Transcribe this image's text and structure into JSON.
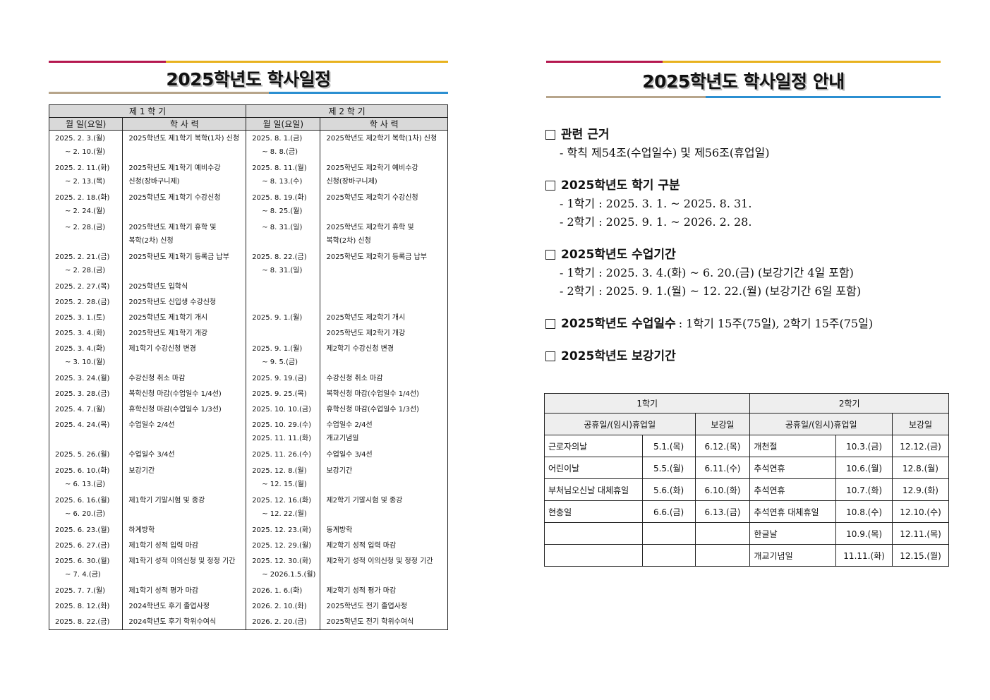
{
  "left": {
    "title": "2025학년도 학사일정",
    "table": {
      "semesters": [
        "제 1 학 기",
        "제 2 학 기"
      ],
      "columns": [
        "월 일(요일)",
        "학 사 력",
        "월 일(요일)",
        "학 사 력"
      ],
      "rows": [
        [
          [
            "2025. 2. 3.(월)",
            "~ 2. 10.(월)"
          ],
          [
            "2025학년도 제1학기 복학(1차) 신청"
          ],
          [
            "2025. 8. 1.(금)",
            "~ 8. 8.(금)"
          ],
          [
            "2025학년도 제2학기 복학(1차) 신청"
          ]
        ],
        [
          [
            "2025. 2. 11.(화)",
            "~ 2. 13.(목)"
          ],
          [
            "2025학년도 제1학기 예비수강",
            "신청(장바구니제)"
          ],
          [
            "2025. 8. 11.(월)",
            "~ 8. 13.(수)"
          ],
          [
            "2025학년도 제2학기 예비수강",
            "신청(장바구니제)"
          ]
        ],
        [
          [
            "2025. 2. 18.(화)",
            "~ 2. 24.(월)"
          ],
          [
            "2025학년도 제1학기 수강신청"
          ],
          [
            "2025. 8. 19.(화)",
            "~ 8. 25.(월)"
          ],
          [
            "2025학년도 제2학기 수강신청"
          ]
        ],
        [
          [
            "~ 2. 28.(금)"
          ],
          [
            "2025학년도 제1학기 휴학 및",
            "복학(2차) 신청"
          ],
          [
            "~ 8. 31.(일)"
          ],
          [
            "2025학년도 제2학기 휴학 및",
            "복학(2차) 신청"
          ]
        ],
        [
          [
            "2025. 2. 21.(금)",
            "~ 2. 28.(금)"
          ],
          [
            "2025학년도 제1학기 등록금 납부"
          ],
          [
            "2025. 8. 22.(금)",
            "~ 8. 31.(일)"
          ],
          [
            "2025학년도 제2학기 등록금 납부"
          ]
        ],
        [
          [
            "2025. 2. 27.(목)"
          ],
          [
            "2025학년도 입학식"
          ],
          [],
          []
        ],
        [
          [
            "2025. 2. 28.(금)"
          ],
          [
            "2025학년도 신입생 수강신청"
          ],
          [],
          []
        ],
        [
          [
            "2025. 3. 1.(토)"
          ],
          [
            "2025학년도 제1학기 개시"
          ],
          [
            "2025. 9. 1.(월)"
          ],
          [
            "2025학년도 제2학기 개시"
          ]
        ],
        [
          [
            "2025. 3. 4.(화)"
          ],
          [
            "2025학년도 제1학기 개강"
          ],
          [],
          [
            "2025학년도 제2학기 개강"
          ]
        ],
        [
          [
            "2025. 3. 4.(화)",
            "~ 3. 10.(월)"
          ],
          [
            "제1학기 수강신청 변경"
          ],
          [
            "2025. 9. 1.(월)",
            "~ 9. 5.(금)"
          ],
          [
            "제2학기 수강신청 변경"
          ]
        ],
        [
          [
            "2025. 3. 24.(월)"
          ],
          [
            "수강신청 취소 마감"
          ],
          [
            "2025. 9. 19.(금)"
          ],
          [
            "수강신청 취소 마감"
          ]
        ],
        [
          [
            "2025. 3. 28.(금)"
          ],
          [
            "복학신청 마감(수업일수 1/4선)"
          ],
          [
            "2025. 9. 25.(목)"
          ],
          [
            "복학신청 마감(수업일수 1/4선)"
          ]
        ],
        [
          [
            "2025. 4. 7.(월)"
          ],
          [
            "휴학신청 마감(수업일수 1/3선)"
          ],
          [
            "2025. 10. 10.(금)"
          ],
          [
            "휴학신청 마감(수업일수 1/3선)"
          ]
        ],
        [
          [
            "2025. 4. 24.(목)"
          ],
          [
            "수업일수 2/4선"
          ],
          [
            "2025. 10. 29.(수)",
            "2025. 11. 11.(화)"
          ],
          [
            "수업일수 2/4선",
            "개교기념일"
          ]
        ],
        [
          [
            "2025. 5. 26.(월)"
          ],
          [
            "수업일수 3/4선"
          ],
          [
            "2025. 11. 26.(수)"
          ],
          [
            "수업일수 3/4선"
          ]
        ],
        [
          [
            "2025. 6. 10.(화)",
            "~ 6. 13.(금)"
          ],
          [
            "보강기간"
          ],
          [
            "2025. 12. 8.(월)",
            "~ 12. 15.(월)"
          ],
          [
            "보강기간"
          ]
        ],
        [
          [
            "2025. 6. 16.(월)",
            "~ 6. 20.(금)"
          ],
          [
            "제1학기 기말시험 및 종강"
          ],
          [
            "2025. 12. 16.(화)",
            "~ 12. 22.(월)"
          ],
          [
            "제2학기 기말시험 및 종강"
          ]
        ],
        [
          [
            "2025. 6. 23.(월)"
          ],
          [
            "하계방학"
          ],
          [
            "2025. 12. 23.(화)"
          ],
          [
            "동계방학"
          ]
        ],
        [
          [
            "2025. 6. 27.(금)"
          ],
          [
            "제1학기 성적 입력 마감"
          ],
          [
            "2025. 12. 29.(월)"
          ],
          [
            "제2학기 성적 입력 마감"
          ]
        ],
        [
          [
            "2025. 6. 30.(월)",
            "~ 7. 4.(금)"
          ],
          [
            "제1학기 성적 이의신청 및 정정 기간"
          ],
          [
            "2025. 12. 30.(화)",
            "~ 2026.1.5.(월)"
          ],
          [
            "제2학기 성적 이의신청 및 정정 기간"
          ]
        ],
        [
          [
            "2025. 7. 7.(월)"
          ],
          [
            "제1학기 성적 평가 마감"
          ],
          [
            "2026. 1. 6.(화)"
          ],
          [
            "제2학기 성적 평가 마감"
          ]
        ],
        [
          [
            "2025. 8. 12.(화)"
          ],
          [
            "2024학년도 후기 졸업사정"
          ],
          [
            "2026. 2. 10.(화)"
          ],
          [
            "2025학년도 전기 졸업사정"
          ]
        ],
        [
          [
            "2025. 8. 22.(금)"
          ],
          [
            "2024학년도 후기 학위수여식"
          ],
          [
            "2026. 2. 20.(금)"
          ],
          [
            "2025학년도 전기 학위수여식"
          ]
        ]
      ]
    }
  },
  "right": {
    "title": "2025학년도 학사일정 안내",
    "sections": [
      {
        "heading": "관련 근거",
        "items": [
          "- 학칙 제54조(수업일수) 및 제56조(휴업일)"
        ]
      },
      {
        "heading": "2025학년도 학기 구분",
        "items": [
          "- 1학기 : 2025. 3. 1. ~ 2025. 8. 31.",
          "- 2학기 : 2025. 9. 1. ~ 2026. 2. 28."
        ]
      },
      {
        "heading": "2025학년도 수업기간",
        "items": [
          "- 1학기 : 2025. 3. 4.(화) ~ 6. 20.(금) (보강기간 4일 포함)",
          "- 2학기 : 2025. 9. 1.(월) ~ 12. 22.(월) (보강기간 6일 포함)"
        ]
      },
      {
        "heading": "2025학년도 수업일수",
        "note": ": 1학기 15주(75일), 2학기 15주(75일)",
        "items": []
      },
      {
        "heading": "2025학년도 보강기간",
        "items": []
      }
    ],
    "makeup": {
      "semesters": [
        "1학기",
        "2학기"
      ],
      "columns": [
        "공휴일/(임시)휴업일",
        "보강일",
        "공휴일/(임시)휴업일",
        "보강일"
      ],
      "rows": [
        [
          "근로자의날",
          "5.1.(목)",
          "6.12.(목)",
          "개천절",
          "10.3.(금)",
          "12.12.(금)"
        ],
        [
          "어린이날",
          "5.5.(월)",
          "6.11.(수)",
          "추석연휴",
          "10.6.(월)",
          "12.8.(월)"
        ],
        [
          "부처님오신날 대체휴일",
          "5.6.(화)",
          "6.10.(화)",
          "추석연휴",
          "10.7.(화)",
          "12.9.(화)"
        ],
        [
          "현충일",
          "6.6.(금)",
          "6.13.(금)",
          "추석연휴 대체휴일",
          "10.8.(수)",
          "12.10.(수)"
        ],
        [
          null,
          null,
          null,
          "한글날",
          "10.9.(목)",
          "12.11.(목)"
        ],
        [
          null,
          null,
          null,
          "개교기념일",
          "11.11.(화)",
          "12.15.(월)"
        ]
      ]
    }
  }
}
